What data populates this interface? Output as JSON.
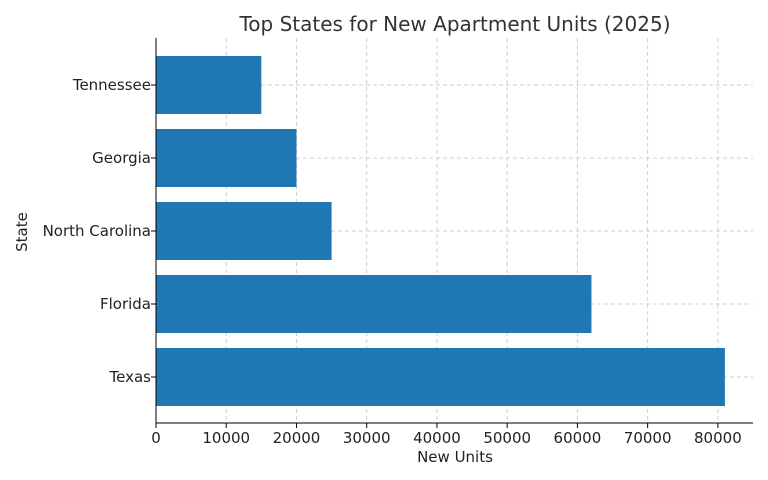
{
  "chart_data": {
    "type": "bar",
    "orientation": "horizontal",
    "title": "Top States for New Apartment Units (2025)",
    "xlabel": "New Units",
    "ylabel": "State",
    "categories": [
      "Texas",
      "Florida",
      "North Carolina",
      "Georgia",
      "Tennessee"
    ],
    "values": [
      81000,
      62000,
      25000,
      20000,
      15000
    ],
    "xlim": [
      0,
      85000
    ],
    "xticks": [
      0,
      10000,
      20000,
      30000,
      40000,
      50000,
      60000,
      70000,
      80000
    ],
    "grid": true,
    "bar_color": "#1f77b4"
  }
}
